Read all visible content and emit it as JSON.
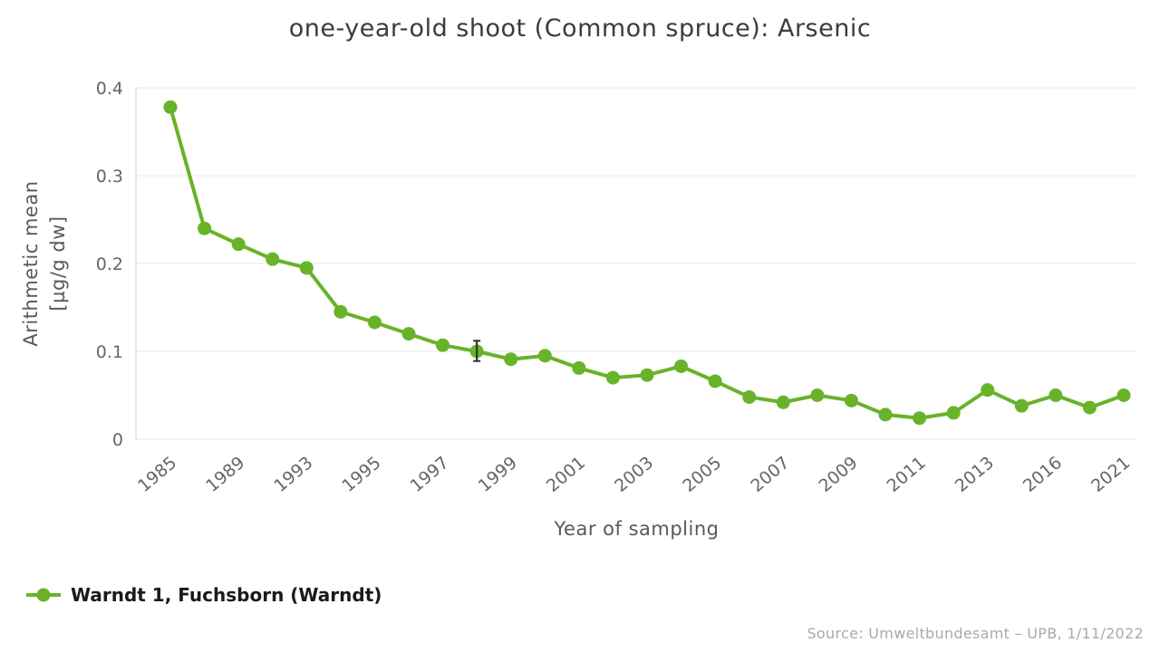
{
  "source": "Source: Umweltbundesamt – UPB, 1/11/2022",
  "chart_data": {
    "type": "line",
    "title": "one-year-old shoot (Common spruce): Arsenic",
    "xlabel": "Year of sampling",
    "ylabel_lines": {
      "0": "Arithmetic mean",
      "1": "[µg/g dw]"
    },
    "series_name": "Warndt 1, Fuchsborn (Warndt)",
    "series_color": "#68b32a",
    "error_bar_color": "#2b2b2b",
    "grid": "horizontal",
    "legend_position": "bottom-left",
    "ylim": [
      0,
      0.4
    ],
    "y_ticks": [
      0,
      0.1,
      0.2,
      0.3,
      0.4
    ],
    "x_ticks": [
      {
        "index": 0,
        "label": "1985"
      },
      {
        "index": 2,
        "label": "1989"
      },
      {
        "index": 4,
        "label": "1993"
      },
      {
        "index": 6,
        "label": "1995"
      },
      {
        "index": 8,
        "label": "1997"
      },
      {
        "index": 10,
        "label": "1999"
      },
      {
        "index": 12,
        "label": "2001"
      },
      {
        "index": 14,
        "label": "2003"
      },
      {
        "index": 16,
        "label": "2005"
      },
      {
        "index": 18,
        "label": "2007"
      },
      {
        "index": 20,
        "label": "2009"
      },
      {
        "index": 22,
        "label": "2011"
      },
      {
        "index": 24,
        "label": "2013"
      },
      {
        "index": 26,
        "label": "2016"
      },
      {
        "index": 28,
        "label": "2021"
      }
    ],
    "values": [
      0.378,
      0.24,
      0.222,
      0.205,
      0.195,
      0.145,
      0.133,
      0.12,
      0.107,
      0.1,
      0.091,
      0.095,
      0.081,
      0.07,
      0.073,
      0.083,
      0.066,
      0.048,
      0.042,
      0.05,
      0.044,
      0.028,
      0.024,
      0.03,
      0.056,
      0.038,
      0.05,
      0.036,
      0.05
    ],
    "error_bar": {
      "point_index": 9,
      "low": 0.089,
      "high": 0.112
    }
  }
}
